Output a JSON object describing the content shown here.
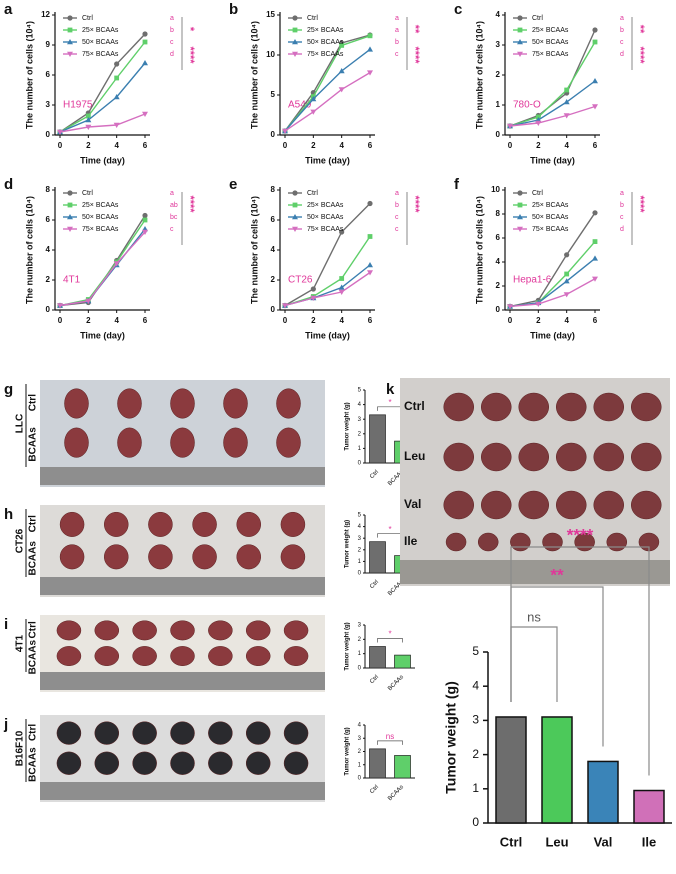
{
  "chart_data": [
    {
      "type": "line",
      "label": "a",
      "cell_line": "H1975",
      "xlabel": "Time (day)",
      "ylabel": "The number of cells (10⁴)",
      "x": [
        0,
        2,
        4,
        6
      ],
      "xlim": [
        0,
        6
      ],
      "xticks": [
        0,
        2,
        4,
        6
      ],
      "ylim": [
        0,
        12
      ],
      "yticks": [
        0,
        3,
        6,
        9,
        12
      ],
      "significance": [
        "*",
        "****"
      ],
      "series": [
        {
          "name": "Ctrl",
          "letter": "a",
          "color": "#6e6e6e",
          "marker": "circle",
          "values": [
            0.3,
            2.2,
            7.1,
            10.1
          ]
        },
        {
          "name": "25× BCAAs",
          "letter": "b",
          "color": "#5fcf6a",
          "marker": "square",
          "values": [
            0.3,
            1.9,
            5.7,
            9.3
          ]
        },
        {
          "name": "50× BCAAs",
          "letter": "c",
          "color": "#3b7fb0",
          "marker": "triangle",
          "values": [
            0.3,
            1.5,
            3.8,
            7.2
          ]
        },
        {
          "name": "75× BCAAs",
          "letter": "d",
          "color": "#d56fc0",
          "marker": "down",
          "values": [
            0.3,
            0.8,
            1.0,
            2.1
          ]
        }
      ]
    },
    {
      "type": "line",
      "label": "b",
      "cell_line": "A549",
      "xlabel": "Time (day)",
      "ylabel": "The number of cells (10⁴)",
      "x": [
        0,
        2,
        4,
        6
      ],
      "xlim": [
        0,
        6
      ],
      "xticks": [
        0,
        2,
        4,
        6
      ],
      "ylim": [
        0,
        15
      ],
      "yticks": [
        0,
        5,
        10,
        15
      ],
      "significance": [
        "**",
        "****"
      ],
      "series": [
        {
          "name": "Ctrl",
          "letter": "a",
          "color": "#6e6e6e",
          "marker": "circle",
          "values": [
            0.5,
            5.3,
            11.5,
            12.5
          ]
        },
        {
          "name": "25× BCAAs",
          "letter": "a",
          "color": "#5fcf6a",
          "marker": "square",
          "values": [
            0.5,
            4.8,
            11.2,
            12.4
          ]
        },
        {
          "name": "50× BCAAs",
          "letter": "b",
          "color": "#3b7fb0",
          "marker": "triangle",
          "values": [
            0.5,
            4.5,
            8.0,
            10.7
          ]
        },
        {
          "name": "75× BCAAs",
          "letter": "c",
          "color": "#d56fc0",
          "marker": "down",
          "values": [
            0.5,
            2.9,
            5.7,
            7.8
          ]
        }
      ]
    },
    {
      "type": "line",
      "label": "c",
      "cell_line": "780-O",
      "xlabel": "Time (day)",
      "ylabel": "The number of cells (10⁴)",
      "x": [
        0,
        2,
        4,
        6
      ],
      "xlim": [
        0,
        6
      ],
      "xticks": [
        0,
        2,
        4,
        6
      ],
      "ylim": [
        0,
        4
      ],
      "yticks": [
        0,
        1,
        2,
        3,
        4
      ],
      "significance": [
        "**",
        "****"
      ],
      "series": [
        {
          "name": "Ctrl",
          "letter": "a",
          "color": "#6e6e6e",
          "marker": "circle",
          "values": [
            0.3,
            0.65,
            1.4,
            3.5
          ]
        },
        {
          "name": "25× BCAAs",
          "letter": "b",
          "color": "#5fcf6a",
          "marker": "square",
          "values": [
            0.3,
            0.6,
            1.5,
            3.1
          ]
        },
        {
          "name": "50× BCAAs",
          "letter": "c",
          "color": "#3b7fb0",
          "marker": "triangle",
          "values": [
            0.3,
            0.5,
            1.1,
            1.8
          ]
        },
        {
          "name": "75× BCAAs",
          "letter": "d",
          "color": "#d56fc0",
          "marker": "down",
          "values": [
            0.3,
            0.4,
            0.65,
            0.95
          ]
        }
      ]
    },
    {
      "type": "line",
      "label": "d",
      "cell_line": "4T1",
      "xlabel": "Time (day)",
      "ylabel": "The number of cells (10⁴)",
      "x": [
        0,
        2,
        4,
        6
      ],
      "xlim": [
        0,
        6
      ],
      "xticks": [
        0,
        2,
        4,
        6
      ],
      "ylim": [
        0,
        8
      ],
      "yticks": [
        0,
        2,
        4,
        6,
        8
      ],
      "significance": [
        "****"
      ],
      "series": [
        {
          "name": "Ctrl",
          "letter": "a",
          "color": "#6e6e6e",
          "marker": "circle",
          "values": [
            0.3,
            0.5,
            3.3,
            6.3
          ]
        },
        {
          "name": "25× BCAAs",
          "letter": "ab",
          "color": "#5fcf6a",
          "marker": "square",
          "values": [
            0.3,
            0.7,
            3.2,
            6.0
          ]
        },
        {
          "name": "50× BCAAs",
          "letter": "bc",
          "color": "#3b7fb0",
          "marker": "triangle",
          "values": [
            0.3,
            0.6,
            3.0,
            5.4
          ]
        },
        {
          "name": "75× BCAAs",
          "letter": "c",
          "color": "#d56fc0",
          "marker": "down",
          "values": [
            0.3,
            0.6,
            3.1,
            5.2
          ]
        }
      ]
    },
    {
      "type": "line",
      "label": "e",
      "cell_line": "CT26",
      "xlabel": "Time (day)",
      "ylabel": "The number of cells (10⁴)",
      "x": [
        0,
        2,
        4,
        6
      ],
      "xlim": [
        0,
        6
      ],
      "xticks": [
        0,
        2,
        4,
        6
      ],
      "ylim": [
        0,
        8
      ],
      "yticks": [
        0,
        2,
        4,
        6,
        8
      ],
      "significance": [
        "****"
      ],
      "series": [
        {
          "name": "Ctrl",
          "letter": "a",
          "color": "#6e6e6e",
          "marker": "circle",
          "values": [
            0.3,
            1.4,
            5.2,
            7.1
          ]
        },
        {
          "name": "25× BCAAs",
          "letter": "b",
          "color": "#5fcf6a",
          "marker": "square",
          "values": [
            0.3,
            0.9,
            2.1,
            4.9
          ]
        },
        {
          "name": "50× BCAAs",
          "letter": "c",
          "color": "#3b7fb0",
          "marker": "triangle",
          "values": [
            0.3,
            0.8,
            1.5,
            3.0
          ]
        },
        {
          "name": "75× BCAAs",
          "letter": "c",
          "color": "#d56fc0",
          "marker": "down",
          "values": [
            0.3,
            0.8,
            1.2,
            2.5
          ]
        }
      ]
    },
    {
      "type": "line",
      "label": "f",
      "cell_line": "Hepa1-6",
      "xlabel": "Time (day)",
      "ylabel": "The number of cells (10⁴)",
      "x": [
        0,
        2,
        4,
        6
      ],
      "xlim": [
        0,
        6
      ],
      "xticks": [
        0,
        2,
        4,
        6
      ],
      "ylim": [
        0,
        10
      ],
      "yticks": [
        0,
        2,
        4,
        6,
        8,
        10
      ],
      "significance": [
        "****"
      ],
      "series": [
        {
          "name": "Ctrl",
          "letter": "a",
          "color": "#6e6e6e",
          "marker": "circle",
          "values": [
            0.3,
            0.8,
            4.6,
            8.1
          ]
        },
        {
          "name": "25× BCAAs",
          "letter": "b",
          "color": "#5fcf6a",
          "marker": "square",
          "values": [
            0.3,
            0.6,
            3.0,
            5.7
          ]
        },
        {
          "name": "50× BCAAs",
          "letter": "c",
          "color": "#3b7fb0",
          "marker": "triangle",
          "values": [
            0.3,
            0.6,
            2.4,
            4.3
          ]
        },
        {
          "name": "75× BCAAs",
          "letter": "d",
          "color": "#d56fc0",
          "marker": "down",
          "values": [
            0.3,
            0.5,
            1.3,
            2.6
          ]
        }
      ]
    },
    {
      "type": "bar",
      "label": "g",
      "cell_line": "LLC",
      "rows": [
        "Ctrl",
        "BCAAs"
      ],
      "ylabel": "Tumor weight (g)",
      "categories": [
        "Ctrl",
        "BCAAs"
      ],
      "values": [
        3.3,
        1.5
      ],
      "colors": [
        "#6e6e6e",
        "#5fcf6a"
      ],
      "ylim": [
        0,
        5
      ],
      "yticks": [
        0,
        1,
        2,
        3,
        4,
        5
      ],
      "annotation": "*"
    },
    {
      "type": "bar",
      "label": "h",
      "cell_line": "CT26",
      "rows": [
        "Ctrl",
        "BCAAs"
      ],
      "ylabel": "Tumor weight (g)",
      "categories": [
        "Ctrl",
        "BCAAs"
      ],
      "values": [
        2.7,
        1.5
      ],
      "colors": [
        "#6e6e6e",
        "#5fcf6a"
      ],
      "ylim": [
        0,
        5
      ],
      "yticks": [
        0,
        1,
        2,
        3,
        4,
        5
      ],
      "annotation": "*"
    },
    {
      "type": "bar",
      "label": "i",
      "cell_line": "4T1",
      "rows": [
        "Ctrl",
        "BCAAs"
      ],
      "ylabel": "Tumor weight (g)",
      "categories": [
        "Ctrl",
        "BCAAs"
      ],
      "values": [
        1.5,
        0.9
      ],
      "colors": [
        "#6e6e6e",
        "#5fcf6a"
      ],
      "ylim": [
        0,
        3
      ],
      "yticks": [
        0,
        1,
        2,
        3
      ],
      "annotation": "*"
    },
    {
      "type": "bar",
      "label": "j",
      "cell_line": "B16F10",
      "rows": [
        "Ctrl",
        "BCAAs"
      ],
      "ylabel": "Tumor weight (g)",
      "categories": [
        "Ctrl",
        "BCAAs"
      ],
      "values": [
        2.2,
        1.7
      ],
      "colors": [
        "#6e6e6e",
        "#5fcf6a"
      ],
      "ylim": [
        0,
        4
      ],
      "yticks": [
        0,
        1,
        2,
        3,
        4
      ],
      "annotation": "ns"
    },
    {
      "type": "bigbar",
      "label": "k",
      "rows": [
        "Ctrl",
        "Leu",
        "Val",
        "Ile"
      ],
      "ylabel": "Tumor weight (g)",
      "categories": [
        "Ctrl",
        "Leu",
        "Val",
        "Ile"
      ],
      "values": [
        3.1,
        3.1,
        1.8,
        0.95
      ],
      "colors": [
        "#6d6d6d",
        "#4cc95a",
        "#3a84b8",
        "#d070b8"
      ],
      "ylim": [
        0,
        5
      ],
      "yticks": [
        0,
        1,
        2,
        3,
        4,
        5
      ],
      "comparisons": [
        {
          "pair": [
            "Ctrl",
            "Leu"
          ],
          "label": "ns"
        },
        {
          "pair": [
            "Ctrl",
            "Val"
          ],
          "label": "**"
        },
        {
          "pair": [
            "Ctrl",
            "Ile"
          ],
          "label": "****"
        }
      ]
    }
  ]
}
